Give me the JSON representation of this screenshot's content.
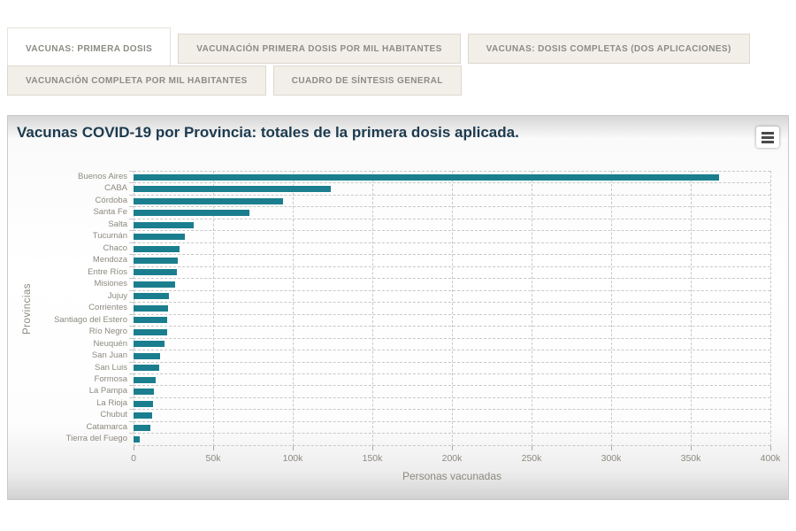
{
  "tabs": [
    {
      "label": "VACUNAS: PRIMERA DOSIS",
      "active": true
    },
    {
      "label": "VACUNACIÓN PRIMERA DOSIS POR MIL HABITANTES",
      "active": false
    },
    {
      "label": "VACUNAS: DOSIS COMPLETAS (DOS APLICACIONES)",
      "active": false
    },
    {
      "label": "VACUNACIÓN COMPLETA POR MIL HABITANTES",
      "active": false
    },
    {
      "label": "CUADRO DE SÍNTESIS GENERAL",
      "active": false
    }
  ],
  "chart": {
    "title": "Vacunas COVID-19 por Provincia: totales de la primera dosis aplicada.",
    "menu_icon": "hamburger-menu",
    "title_color": "#1c3a4e"
  },
  "chart_data": {
    "type": "bar",
    "orientation": "horizontal",
    "title": "Vacunas COVID-19 por Provincia: totales de la primera dosis aplicada.",
    "xlabel": "Personas vacunadas",
    "ylabel": "Provincias",
    "xlim": [
      0,
      400000
    ],
    "x_ticks": [
      "0",
      "50k",
      "100k",
      "150k",
      "200k",
      "250k",
      "300k",
      "350k",
      "400k"
    ],
    "x_tick_values": [
      0,
      50000,
      100000,
      150000,
      200000,
      250000,
      300000,
      350000,
      400000
    ],
    "grid": true,
    "grid_style": "dashed",
    "legend": "none",
    "bar_color": "#1a7e8e",
    "categories": [
      "Buenos Aires",
      "CABA",
      "Córdoba",
      "Santa Fe",
      "Salta",
      "Tucumán",
      "Chaco",
      "Mendoza",
      "Entre Ríos",
      "Misiones",
      "Jujuy",
      "Corrientes",
      "Santiago del Estero",
      "Río Negro",
      "Neuquén",
      "San Juan",
      "San Luis",
      "Formosa",
      "La Pampa",
      "La Rioja",
      "Chubut",
      "Catamarca",
      "Tierra del Fuego"
    ],
    "values": [
      368000,
      124000,
      94000,
      73000,
      37500,
      32000,
      29000,
      27500,
      27000,
      26000,
      22000,
      21500,
      21200,
      21000,
      19500,
      16500,
      16000,
      14000,
      12500,
      12000,
      11800,
      10500,
      4000
    ]
  }
}
